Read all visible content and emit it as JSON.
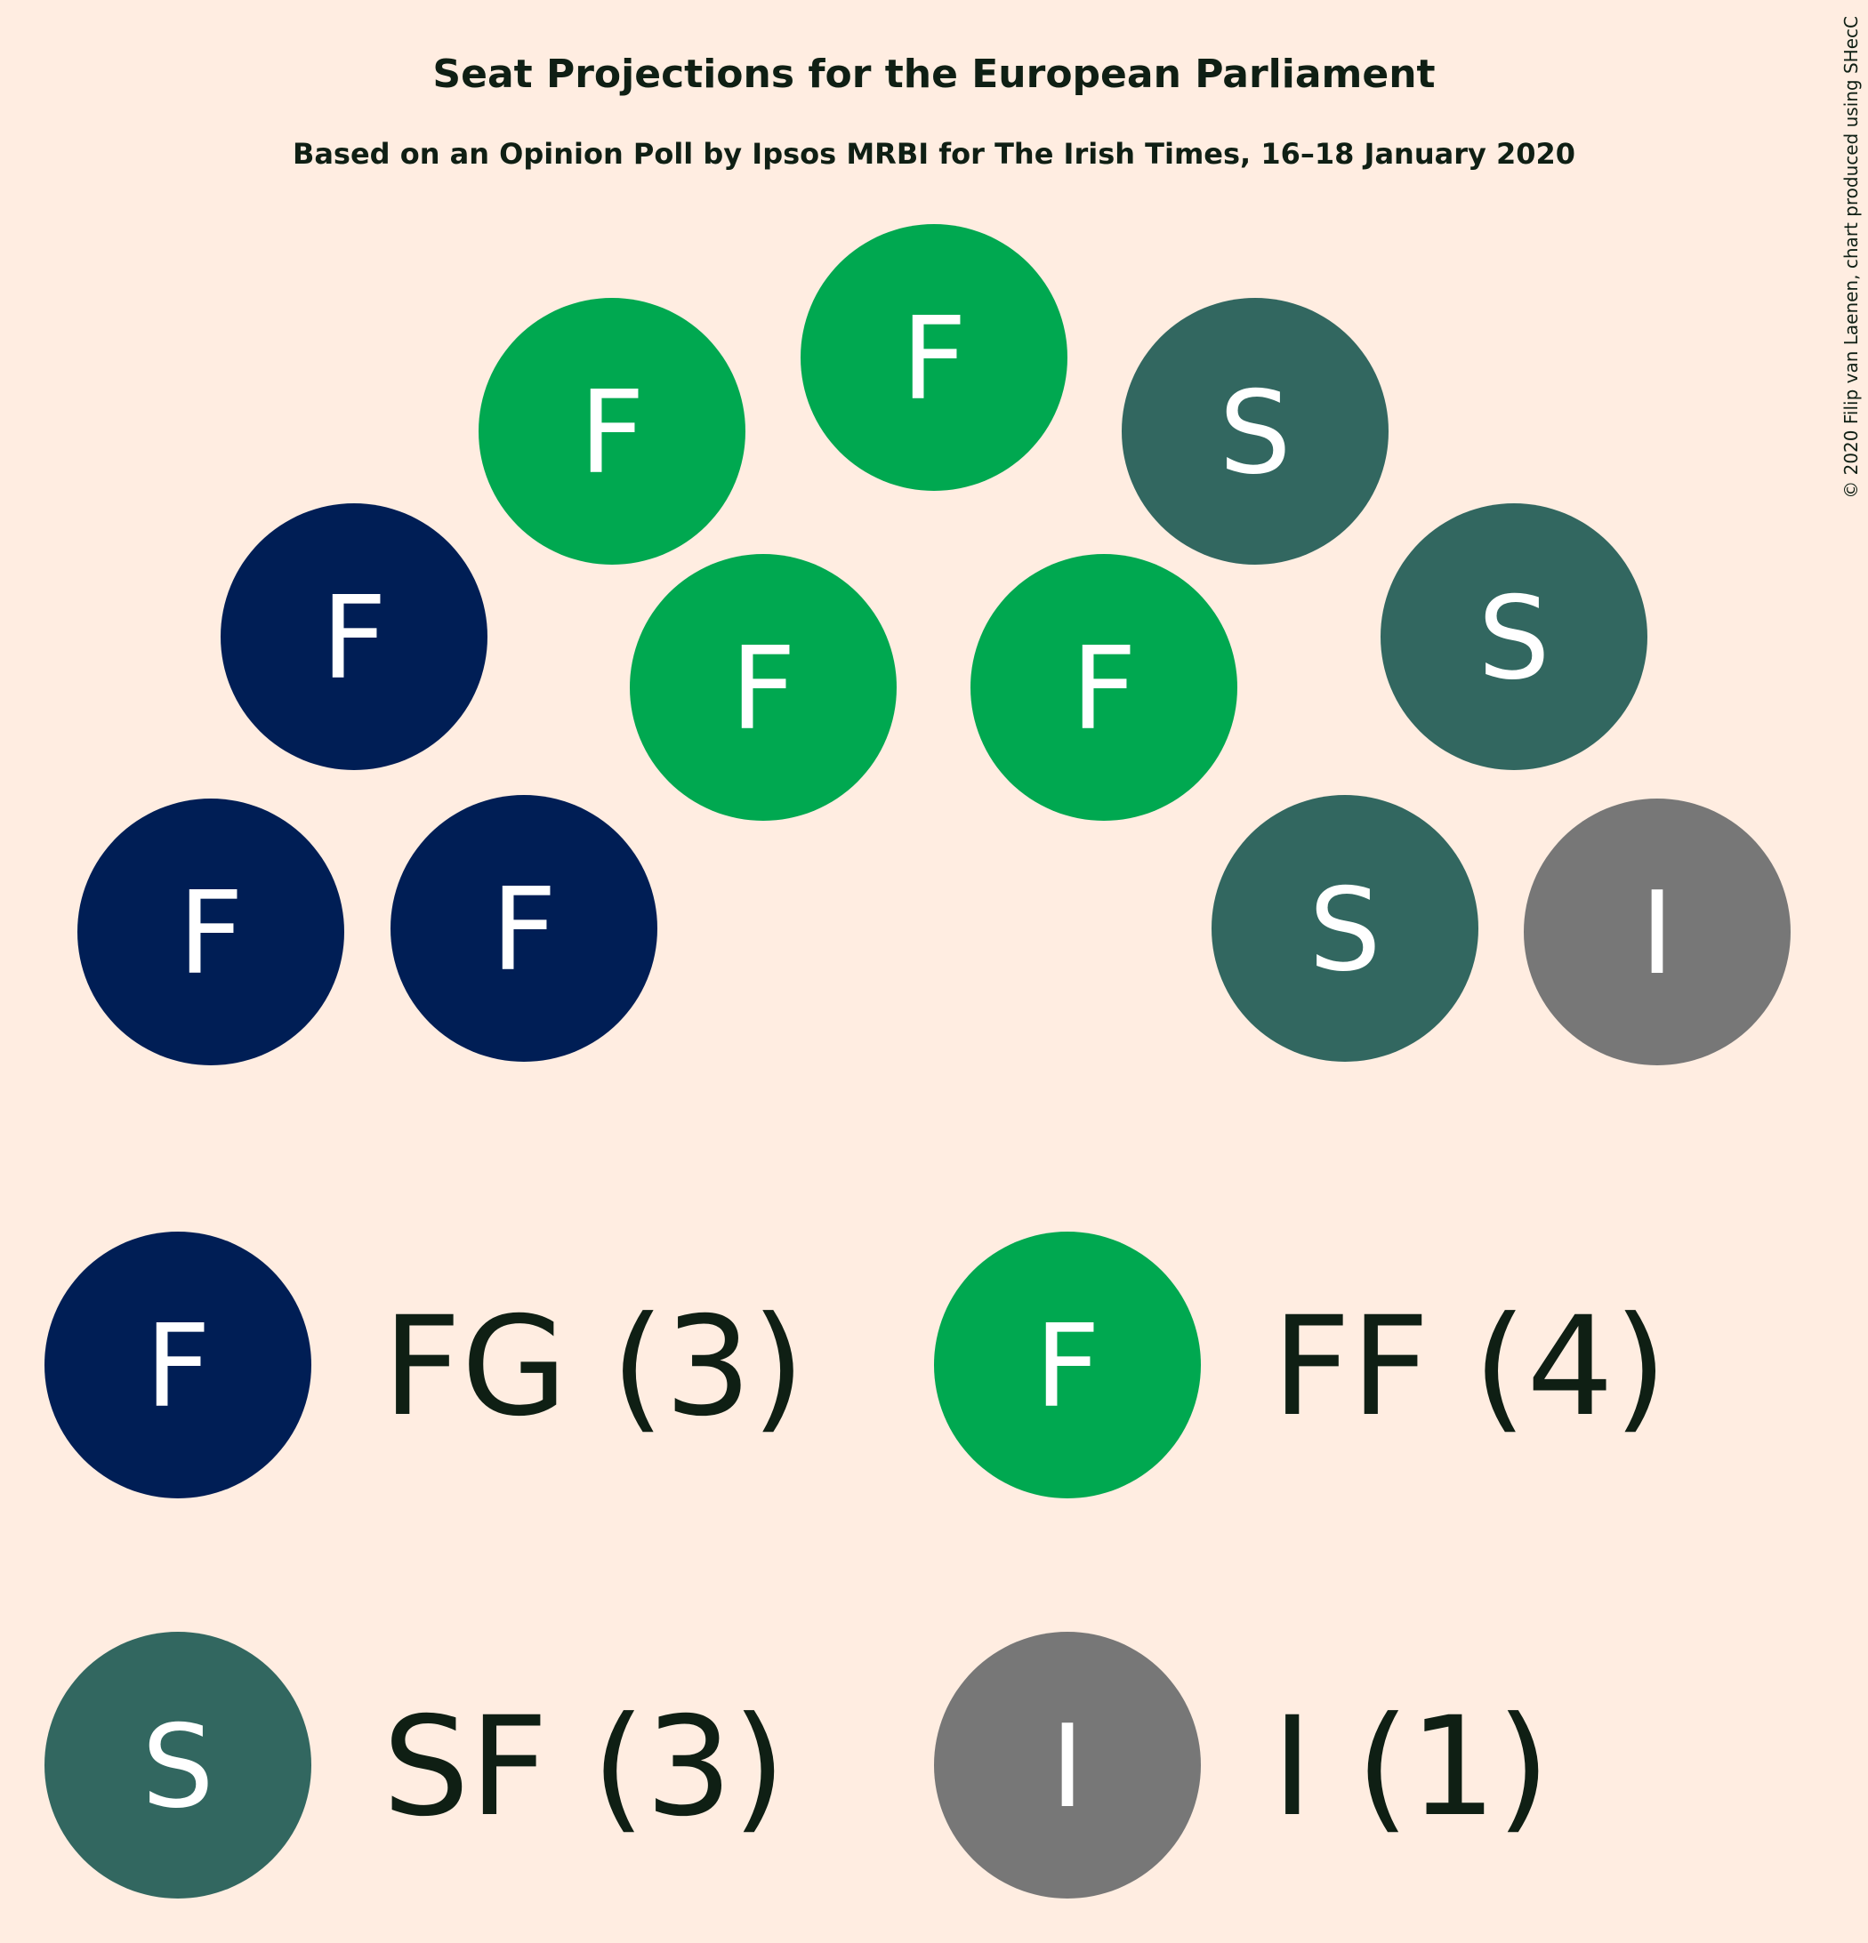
{
  "chart_data": {
    "type": "parliament",
    "title": "Seat Projections for the European Parliament",
    "subtitle": "Based on an Opinion Poll by Ipsos MRBI for The Irish Times, 16–18 January 2020",
    "copyright": "© 2020 Filip van Laenen, chart produced using SHecC",
    "parties": [
      {
        "id": "FG",
        "letter": "F",
        "label": "FG (3)",
        "seats": 3,
        "color": "#001E55"
      },
      {
        "id": "FF",
        "letter": "F",
        "label": "FF (4)",
        "seats": 4,
        "color": "#00A850"
      },
      {
        "id": "SF",
        "letter": "S",
        "label": "SF (3)",
        "seats": 3,
        "color": "#326760"
      },
      {
        "id": "I",
        "letter": "I",
        "label": "I (1)",
        "seats": 1,
        "color": "#777777"
      }
    ],
    "seat_order": [
      "FG",
      "FG",
      "FG",
      "FF",
      "FF",
      "FF",
      "FF",
      "SF",
      "SF",
      "SF",
      "I"
    ]
  }
}
